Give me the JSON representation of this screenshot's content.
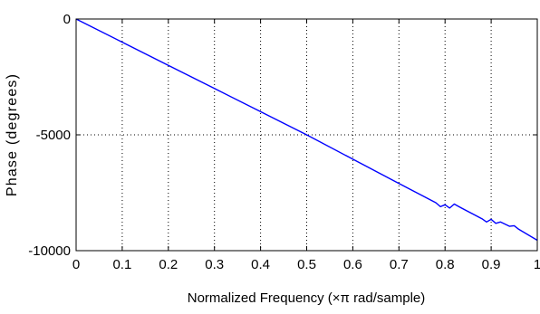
{
  "chart_data": {
    "type": "line",
    "title": "",
    "xlabel": "Normalized Frequency  (×π rad/sample)",
    "ylabel": "Phase (degrees)",
    "xlim": [
      0,
      1
    ],
    "ylim": [
      -10000,
      0
    ],
    "xticks": [
      0,
      0.1,
      0.2,
      0.3,
      0.4,
      0.5,
      0.6,
      0.7,
      0.8,
      0.9,
      1
    ],
    "xtick_labels": [
      "0",
      "0.1",
      "0.2",
      "0.3",
      "0.4",
      "0.5",
      "0.6",
      "0.7",
      "0.8",
      "0.9",
      "1"
    ],
    "yticks": [
      -10000,
      -5000,
      0
    ],
    "ytick_labels": [
      "-10000",
      "-5000",
      "0"
    ],
    "grid": true,
    "line_color": "#0000ff",
    "series": [
      {
        "x": [
          0,
          0.1,
          0.2,
          0.3,
          0.4,
          0.5,
          0.6,
          0.7,
          0.78,
          0.79,
          0.8,
          0.81,
          0.82,
          0.83,
          0.88,
          0.89,
          0.9,
          0.91,
          0.92,
          0.94,
          0.95,
          0.96,
          1.0
        ],
        "y": [
          0,
          -1000,
          -2000,
          -3000,
          -4000,
          -5000,
          -6050,
          -7100,
          -7930,
          -8100,
          -8020,
          -8160,
          -7990,
          -8100,
          -8620,
          -8760,
          -8650,
          -8820,
          -8760,
          -8950,
          -8920,
          -9080,
          -9550
        ]
      }
    ]
  }
}
